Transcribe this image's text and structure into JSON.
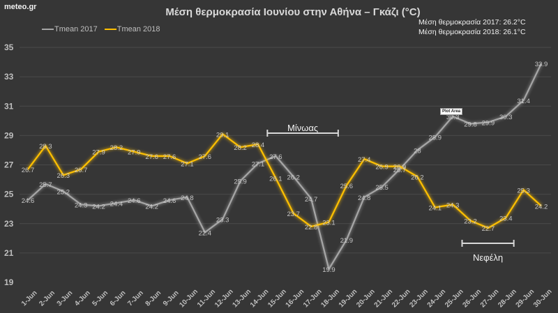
{
  "brand": "meteo.gr",
  "tooltip": "Plot Area",
  "chart_data": {
    "type": "line",
    "title": "Μέση θερμοκρασία Ιουνίου στην Αθήνα – Γκάζι (°C)",
    "xlabel": "",
    "ylabel": "",
    "ylim": [
      19,
      35
    ],
    "yticks": [
      19,
      21,
      23,
      25,
      27,
      29,
      31,
      33,
      35
    ],
    "grid": true,
    "legend_position": "top-left",
    "categories": [
      "1-Jun",
      "2-Jun",
      "3-Jun",
      "4-Jun",
      "5-Jun",
      "6-Jun",
      "7-Jun",
      "8-Jun",
      "9-Jun",
      "10-Jun",
      "11-Jun",
      "12-Jun",
      "13-Jun",
      "14-Jun",
      "15-Jun",
      "16-Jun",
      "17-Jun",
      "18-Jun",
      "19-Jun",
      "20-Jun",
      "21-Jun",
      "22-Jun",
      "23-Jun",
      "24-Jun",
      "25-Jun",
      "26-Jun",
      "27-Jun",
      "28-Jun",
      "29-Jun",
      "30-Jun"
    ],
    "series": [
      {
        "name": "Tmean 2017",
        "color": "#a6a6a6",
        "values": [
          24.6,
          25.7,
          25.2,
          24.3,
          24.2,
          24.4,
          24.6,
          24.2,
          24.6,
          24.8,
          22.4,
          23.3,
          25.9,
          27.1,
          27.6,
          26.2,
          24.7,
          19.9,
          21.9,
          24.8,
          25.5,
          26.7,
          28,
          28.9,
          30.3,
          29.8,
          29.9,
          30.3,
          31.4,
          33.9
        ]
      },
      {
        "name": "Tmean 2018",
        "color": "#ffc000",
        "values": [
          26.7,
          28.3,
          26.3,
          26.7,
          27.9,
          28.2,
          27.9,
          27.6,
          27.6,
          27.1,
          27.6,
          29.1,
          28.2,
          28.4,
          26.1,
          23.7,
          22.8,
          23.1,
          25.6,
          27.4,
          26.9,
          26.9,
          26.2,
          24.1,
          24.3,
          23.2,
          22.7,
          23.4,
          25.3,
          24.2
        ]
      }
    ],
    "stats": [
      "Μέση θερμοκρασία 2017: 26.2°C",
      "Μέση θερμοκρασία 2018: 26.1°C"
    ],
    "annotations": [
      {
        "label": "Μίνωας",
        "from": "15-Jun",
        "to": "19-Jun"
      },
      {
        "label": "Νεφέλη",
        "from": "26-Jun",
        "to": "29-Jun"
      }
    ]
  }
}
